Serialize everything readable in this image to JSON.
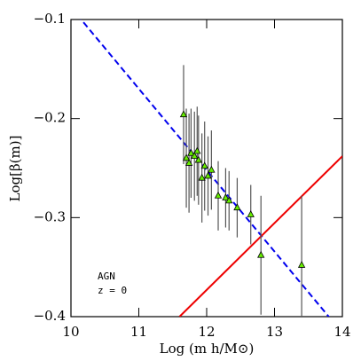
{
  "chart_data": {
    "type": "scatter",
    "xlabel": "Log (m h/M⊙)",
    "ylabel": "Log[β(m)]",
    "annotations": [
      "AGN",
      "z = 0"
    ],
    "xlim": [
      10,
      14
    ],
    "xticks": [
      10,
      11,
      12,
      13,
      14
    ],
    "ylim": [
      -0.4,
      -0.1
    ],
    "yticks": [
      {
        "value": -0.1,
        "label": "−0.1"
      },
      {
        "value": -0.2,
        "label": "−0.2"
      },
      {
        "value": -0.3,
        "label": "−0.3"
      },
      {
        "value": -0.4,
        "label": "−0.4"
      }
    ],
    "points": {
      "color": "#66ee00",
      "x": [
        11.66,
        11.7,
        11.74,
        11.77,
        11.82,
        11.86,
        11.88,
        11.93,
        11.97,
        12.02,
        12.07,
        12.17,
        12.28,
        12.33,
        12.45,
        12.65,
        12.8,
        13.4
      ],
      "values": [
        -0.196,
        -0.24,
        -0.245,
        -0.235,
        -0.238,
        -0.233,
        -0.242,
        -0.26,
        -0.248,
        -0.258,
        -0.252,
        -0.278,
        -0.28,
        -0.283,
        -0.29,
        -0.297,
        -0.338,
        -0.348
      ],
      "errors": [
        0.05,
        0.05,
        0.05,
        0.045,
        0.045,
        0.045,
        0.045,
        0.045,
        0.045,
        0.04,
        0.04,
        0.035,
        0.03,
        0.03,
        0.03,
        0.03,
        0.06,
        0.07
      ]
    },
    "lines": [
      {
        "color": "#0000ee",
        "dashed": true,
        "x": [
          10,
          14
        ],
        "values": [
          -0.0877,
          -0.4165
        ]
      },
      {
        "color": "#ee0000",
        "dashed": false,
        "x": [
          11.6,
          14
        ],
        "values": [
          -0.4,
          -0.238
        ]
      }
    ]
  }
}
